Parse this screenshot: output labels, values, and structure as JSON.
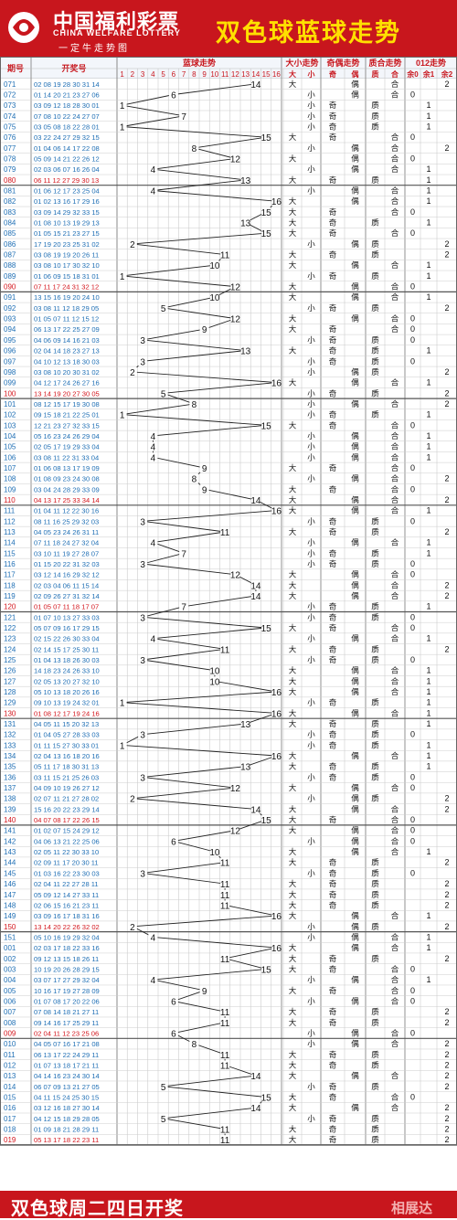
{
  "header": {
    "brand_cn": "中国福利彩票",
    "brand_en": "CHINA WELFARE LOTTERY",
    "brand_sub": "一定牛走势图",
    "title": "双色球蓝球走势"
  },
  "footer": {
    "text": "双色球周二四日开奖",
    "watermark": "相展达"
  },
  "columns": {
    "issue": "期号",
    "numbers": "开奖号",
    "blue": "蓝球走势",
    "size": "大小走势",
    "parity": "奇偶走势",
    "prime": "质合走势",
    "mod": "012走势",
    "sub": [
      "大",
      "小",
      "奇",
      "偶",
      "质",
      "合",
      "余0",
      "余1",
      "余2"
    ]
  },
  "labels": {
    "big": "大",
    "small": "小",
    "odd": "奇",
    "even": "偶",
    "prime": "质",
    "composite": "合"
  },
  "colors": {
    "brand_red": "#c8161d",
    "title_yellow": "#ffe000",
    "issue_blue": "#1f6fb5",
    "issue_red": "#d4161d",
    "grid": "#cccccc",
    "line": "#222222"
  },
  "chart_data": {
    "type": "line",
    "x_label": "期号",
    "y_label": "蓝球",
    "y_range": [
      1,
      16
    ],
    "rows": [
      {
        "issue": "071",
        "numbers": "02 08 19 28 30 31 14",
        "blue": 14
      },
      {
        "issue": "072",
        "numbers": "01 14 20 21 23 27 06",
        "blue": 6
      },
      {
        "issue": "073",
        "numbers": "03 09 12 18 28 30 01",
        "blue": 1
      },
      {
        "issue": "074",
        "numbers": "07 08 10 22 24 27 07",
        "blue": 7
      },
      {
        "issue": "075",
        "numbers": "03 05 08 18 22 28 01",
        "blue": 1
      },
      {
        "issue": "076",
        "numbers": "03 22 24 27 29 32 15",
        "blue": 15
      },
      {
        "issue": "077",
        "numbers": "01 04 06 14 17 22 08",
        "blue": 8
      },
      {
        "issue": "078",
        "numbers": "05 09 14 21 22 26 12",
        "blue": 12
      },
      {
        "issue": "079",
        "numbers": "02 03 06 07 16 26 04",
        "blue": 4
      },
      {
        "issue": "080",
        "numbers": "06 11 12 27 29 30 13",
        "blue": 13
      },
      {
        "issue": "081",
        "numbers": "01 06 12 17 23 25 04",
        "blue": 4
      },
      {
        "issue": "082",
        "numbers": "01 02 13 16 17 29 16",
        "blue": 16
      },
      {
        "issue": "083",
        "numbers": "03 09 14 29 32 33 15",
        "blue": 15
      },
      {
        "issue": "084",
        "numbers": "01 08 10 13 19 29 13",
        "blue": 13
      },
      {
        "issue": "085",
        "numbers": "01 05 15 21 23 27 15",
        "blue": 15
      },
      {
        "issue": "086",
        "numbers": "17 19 20 23 25 31 02",
        "blue": 2
      },
      {
        "issue": "087",
        "numbers": "03 08 19 19 20 26 11",
        "blue": 11
      },
      {
        "issue": "088",
        "numbers": "03 08 10 17 30 32 10",
        "blue": 10
      },
      {
        "issue": "089",
        "numbers": "01 06 09 15 18 31 01",
        "blue": 1
      },
      {
        "issue": "090",
        "numbers": "07 11 17 24 31 32 12",
        "blue": 12
      },
      {
        "issue": "091",
        "numbers": "13 15 16 19 20 24 10",
        "blue": 10
      },
      {
        "issue": "092",
        "numbers": "03 08 11 12 18 29 05",
        "blue": 5
      },
      {
        "issue": "093",
        "numbers": "01 05 07 11 12 15 12",
        "blue": 12
      },
      {
        "issue": "094",
        "numbers": "06 13 17 22 25 27 09",
        "blue": 9
      },
      {
        "issue": "095",
        "numbers": "04 06 09 14 16 21 03",
        "blue": 3
      },
      {
        "issue": "096",
        "numbers": "02 04 14 18 23 27 13",
        "blue": 13
      },
      {
        "issue": "097",
        "numbers": "04 10 12 13 18 30 03",
        "blue": 3
      },
      {
        "issue": "098",
        "numbers": "03 08 10 20 30 31 02",
        "blue": 2
      },
      {
        "issue": "099",
        "numbers": "04 12 17 24 26 27 16",
        "blue": 16
      },
      {
        "issue": "100",
        "numbers": "13 14 19 20 27 30 05",
        "blue": 5
      },
      {
        "issue": "101",
        "numbers": "08 12 15 17 19 30 08",
        "blue": 8
      },
      {
        "issue": "102",
        "numbers": "09 15 18 21 22 25 01",
        "blue": 1
      },
      {
        "issue": "103",
        "numbers": "12 21 23 27 32 33 15",
        "blue": 15
      },
      {
        "issue": "104",
        "numbers": "05 16 23 24 26 29 04",
        "blue": 4
      },
      {
        "issue": "105",
        "numbers": "02 05 17 19 29 33 04",
        "blue": 4
      },
      {
        "issue": "106",
        "numbers": "03 08 11 22 31 33 04",
        "blue": 4
      },
      {
        "issue": "107",
        "numbers": "01 06 08 13 17 19 09",
        "blue": 9
      },
      {
        "issue": "108",
        "numbers": "01 08 09 23 24 30 08",
        "blue": 8
      },
      {
        "issue": "109",
        "numbers": "03 04 24 28 29 33 09",
        "blue": 9
      },
      {
        "issue": "110",
        "numbers": "04 13 17 25 33 34 14",
        "blue": 14
      },
      {
        "issue": "111",
        "numbers": "01 04 11 12 22 30 16",
        "blue": 16
      },
      {
        "issue": "112",
        "numbers": "08 11 16 25 29 32 03",
        "blue": 3
      },
      {
        "issue": "113",
        "numbers": "04 05 23 24 26 31 11",
        "blue": 11
      },
      {
        "issue": "114",
        "numbers": "07 11 18 24 27 32 04",
        "blue": 4
      },
      {
        "issue": "115",
        "numbers": "03 10 11 19 27 28 07",
        "blue": 7
      },
      {
        "issue": "116",
        "numbers": "01 15 20 22 31 32 03",
        "blue": 3
      },
      {
        "issue": "117",
        "numbers": "03 12 14 16 29 32 12",
        "blue": 12
      },
      {
        "issue": "118",
        "numbers": "02 03 04 06 11 15 14",
        "blue": 14
      },
      {
        "issue": "119",
        "numbers": "02 09 26 27 31 32 14",
        "blue": 14
      },
      {
        "issue": "120",
        "numbers": "01 05 07 11 18 17 07",
        "blue": 7
      },
      {
        "issue": "121",
        "numbers": "01 07 10 13 27 33 03",
        "blue": 3
      },
      {
        "issue": "122",
        "numbers": "05 07 09 16 17 29 15",
        "blue": 15
      },
      {
        "issue": "123",
        "numbers": "02 15 22 26 30 33 04",
        "blue": 4
      },
      {
        "issue": "124",
        "numbers": "02 14 15 17 25 30 11",
        "blue": 11
      },
      {
        "issue": "125",
        "numbers": "01 04 13 18 26 30 03",
        "blue": 3
      },
      {
        "issue": "126",
        "numbers": "14 18 23 24 26 33 10",
        "blue": 10
      },
      {
        "issue": "127",
        "numbers": "02 05 13 20 27 32 10",
        "blue": 10
      },
      {
        "issue": "128",
        "numbers": "05 10 13 18 20 26 16",
        "blue": 16
      },
      {
        "issue": "129",
        "numbers": "09 10 13 19 24 32 01",
        "blue": 1
      },
      {
        "issue": "130",
        "numbers": "01 08 12 17 19 24 16",
        "blue": 16
      },
      {
        "issue": "131",
        "numbers": "04 05 11 15 20 32 13",
        "blue": 13
      },
      {
        "issue": "132",
        "numbers": "01 04 05 27 28 33 03",
        "blue": 3
      },
      {
        "issue": "133",
        "numbers": "01 11 15 27 30 33 01",
        "blue": 1
      },
      {
        "issue": "134",
        "numbers": "02 04 13 16 18 20 16",
        "blue": 16
      },
      {
        "issue": "135",
        "numbers": "05 11 17 18 30 31 13",
        "blue": 13
      },
      {
        "issue": "136",
        "numbers": "03 11 15 21 25 26 03",
        "blue": 3
      },
      {
        "issue": "137",
        "numbers": "04 09 10 19 26 27 12",
        "blue": 12
      },
      {
        "issue": "138",
        "numbers": "02 07 11 21 27 28 02",
        "blue": 2
      },
      {
        "issue": "139",
        "numbers": "15 16 20 22 23 29 14",
        "blue": 14
      },
      {
        "issue": "140",
        "numbers": "04 07 08 17 22 26 15",
        "blue": 15
      },
      {
        "issue": "141",
        "numbers": "01 02 07 15 24 29 12",
        "blue": 12
      },
      {
        "issue": "142",
        "numbers": "04 06 13 21 22 25 06",
        "blue": 6
      },
      {
        "issue": "143",
        "numbers": "02 05 11 22 30 33 10",
        "blue": 10
      },
      {
        "issue": "144",
        "numbers": "02 09 11 17 20 30 11",
        "blue": 11
      },
      {
        "issue": "145",
        "numbers": "01 03 16 22 23 30 03",
        "blue": 3
      },
      {
        "issue": "146",
        "numbers": "02 04 11 22 27 28 11",
        "blue": 11
      },
      {
        "issue": "147",
        "numbers": "05 09 12 14 27 33 11",
        "blue": 11
      },
      {
        "issue": "148",
        "numbers": "02 06 15 16 21 23 11",
        "blue": 11
      },
      {
        "issue": "149",
        "numbers": "03 09 16 17 18 31 16",
        "blue": 16
      },
      {
        "issue": "150",
        "numbers": "13 14 20 22 26 32 02",
        "blue": 2
      },
      {
        "issue": "151",
        "numbers": "05 10 16 19 29 32 04",
        "blue": 4
      },
      {
        "issue": "001",
        "numbers": "02 03 17 18 22 33 16",
        "blue": 16
      },
      {
        "issue": "002",
        "numbers": "09 12 13 15 18 26 11",
        "blue": 11
      },
      {
        "issue": "003",
        "numbers": "10 19 20 26 28 29 15",
        "blue": 15
      },
      {
        "issue": "004",
        "numbers": "03 07 17 27 29 32 04",
        "blue": 4
      },
      {
        "issue": "005",
        "numbers": "10 16 17 19 27 28 09",
        "blue": 9
      },
      {
        "issue": "006",
        "numbers": "01 07 08 17 20 22 06",
        "blue": 6
      },
      {
        "issue": "007",
        "numbers": "07 08 14 18 21 27 11",
        "blue": 11
      },
      {
        "issue": "008",
        "numbers": "09 14 16 17 25 29 11",
        "blue": 11
      },
      {
        "issue": "009",
        "numbers": "02 04 11 12 23 25 06",
        "blue": 6
      },
      {
        "issue": "010",
        "numbers": "04 05 07 16 17 21 08",
        "blue": 8
      },
      {
        "issue": "011",
        "numbers": "06 13 17 22 24 29 11",
        "blue": 11
      },
      {
        "issue": "012",
        "numbers": "01 07 13 18 17 21 11",
        "blue": 11
      },
      {
        "issue": "013",
        "numbers": "04 14 16 23 24 30 14",
        "blue": 14
      },
      {
        "issue": "014",
        "numbers": "06 07 09 13 21 27 05",
        "blue": 5
      },
      {
        "issue": "015",
        "numbers": "04 11 15 24 25 30 15",
        "blue": 15
      },
      {
        "issue": "016",
        "numbers": "03 12 16 18 27 30 14",
        "blue": 14
      },
      {
        "issue": "017",
        "numbers": "04 12 15 18 29 28 05",
        "blue": 5
      },
      {
        "issue": "018",
        "numbers": "01 09 18 21 28 29 11",
        "blue": 11
      },
      {
        "issue": "019",
        "numbers": "05 13 17 18 22 23 11",
        "blue": 11
      }
    ]
  }
}
